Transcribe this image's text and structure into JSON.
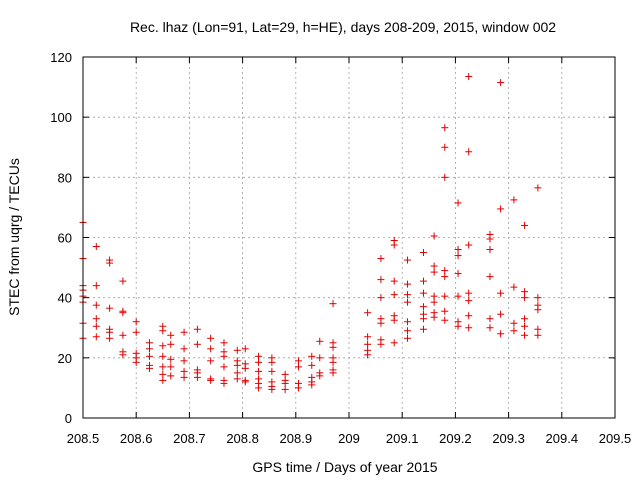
{
  "chart_data": {
    "type": "scatter",
    "title": "Rec. lhaz (Lon=91, Lat=29, h=HE), days 208-209, 2015, window 002",
    "xlabel": "GPS time / Days of year 2015",
    "ylabel": "STEC from uqrg / TECUs",
    "xlim": [
      208.5,
      209.5
    ],
    "ylim": [
      0,
      120
    ],
    "xticks": [
      208.5,
      208.6,
      208.7,
      208.8,
      208.9,
      209,
      209.1,
      209.2,
      209.3,
      209.4,
      209.5
    ],
    "xtick_labels": [
      "208.5",
      "208.6",
      "208.7",
      "208.8",
      "208.9",
      "209",
      "209.1",
      "209.2",
      "209.3",
      "209.4",
      "209.5"
    ],
    "yticks": [
      0,
      20,
      40,
      60,
      80,
      100,
      120
    ],
    "ytick_labels": [
      "0",
      "20",
      "40",
      "60",
      "80",
      "100",
      "120"
    ],
    "grid": true,
    "marker": "plus",
    "color": "#e00000",
    "series": [
      {
        "points": [
          [
            208.5,
            65.0
          ],
          [
            208.5,
            53.0
          ],
          [
            208.5,
            44.0
          ],
          [
            208.5,
            42.5
          ],
          [
            208.5,
            40.5
          ],
          [
            208.5,
            38.5
          ],
          [
            208.5,
            31.5
          ],
          [
            208.5,
            26.5
          ],
          [
            208.525,
            57.0
          ],
          [
            208.525,
            44.0
          ],
          [
            208.525,
            37.5
          ],
          [
            208.525,
            33.0
          ],
          [
            208.525,
            30.5
          ],
          [
            208.525,
            27.0
          ],
          [
            208.55,
            52.5
          ],
          [
            208.55,
            51.5
          ],
          [
            208.55,
            36.5
          ],
          [
            208.55,
            29.5
          ],
          [
            208.55,
            28.5
          ],
          [
            208.55,
            26.5
          ],
          [
            208.575,
            45.5
          ],
          [
            208.575,
            35.5
          ],
          [
            208.575,
            35.0
          ],
          [
            208.575,
            27.5
          ],
          [
            208.575,
            22.0
          ],
          [
            208.575,
            21.0
          ],
          [
            208.6,
            32.0
          ],
          [
            208.6,
            28.5
          ],
          [
            208.6,
            21.5
          ],
          [
            208.6,
            20.0
          ],
          [
            208.6,
            18.5
          ],
          [
            208.625,
            25.0
          ],
          [
            208.625,
            23.0
          ],
          [
            208.625,
            20.5
          ],
          [
            208.625,
            17.5
          ],
          [
            208.625,
            16.5
          ],
          [
            208.65,
            30.5
          ],
          [
            208.65,
            29.0
          ],
          [
            208.65,
            24.0
          ],
          [
            208.65,
            20.5
          ],
          [
            208.65,
            17.0
          ],
          [
            208.65,
            14.5
          ],
          [
            208.65,
            12.5
          ],
          [
            208.665,
            27.5
          ],
          [
            208.665,
            24.5
          ],
          [
            208.665,
            19.5
          ],
          [
            208.665,
            17.0
          ],
          [
            208.665,
            14.0
          ],
          [
            208.69,
            28.5
          ],
          [
            208.69,
            23.0
          ],
          [
            208.69,
            19.0
          ],
          [
            208.69,
            15.5
          ],
          [
            208.69,
            13.5
          ],
          [
            208.715,
            29.5
          ],
          [
            208.715,
            24.5
          ],
          [
            208.715,
            16.0
          ],
          [
            208.715,
            15.0
          ],
          [
            208.715,
            13.5
          ],
          [
            208.74,
            26.5
          ],
          [
            208.74,
            23.0
          ],
          [
            208.74,
            19.0
          ],
          [
            208.74,
            13.0
          ],
          [
            208.74,
            12.5
          ],
          [
            208.765,
            25.0
          ],
          [
            208.765,
            22.0
          ],
          [
            208.765,
            20.5
          ],
          [
            208.765,
            17.0
          ],
          [
            208.765,
            12.5
          ],
          [
            208.765,
            11.5
          ],
          [
            208.79,
            22.5
          ],
          [
            208.79,
            19.0
          ],
          [
            208.79,
            17.5
          ],
          [
            208.79,
            15.0
          ],
          [
            208.79,
            13.0
          ],
          [
            208.805,
            23.0
          ],
          [
            208.805,
            18.0
          ],
          [
            208.805,
            16.5
          ],
          [
            208.805,
            12.5
          ],
          [
            208.805,
            12.0
          ],
          [
            208.83,
            20.5
          ],
          [
            208.83,
            18.5
          ],
          [
            208.83,
            15.5
          ],
          [
            208.83,
            13.0
          ],
          [
            208.83,
            11.5
          ],
          [
            208.83,
            10.0
          ],
          [
            208.855,
            20.0
          ],
          [
            208.855,
            18.5
          ],
          [
            208.855,
            15.5
          ],
          [
            208.855,
            12.0
          ],
          [
            208.855,
            10.5
          ],
          [
            208.855,
            9.5
          ],
          [
            208.88,
            14.5
          ],
          [
            208.88,
            12.5
          ],
          [
            208.88,
            11.5
          ],
          [
            208.88,
            9.5
          ],
          [
            208.905,
            19.0
          ],
          [
            208.905,
            17.0
          ],
          [
            208.905,
            11.5
          ],
          [
            208.905,
            10.0
          ],
          [
            208.93,
            20.5
          ],
          [
            208.93,
            17.5
          ],
          [
            208.93,
            13.5
          ],
          [
            208.93,
            12.0
          ],
          [
            208.93,
            11.0
          ],
          [
            208.945,
            25.5
          ],
          [
            208.945,
            20.0
          ],
          [
            208.945,
            15.0
          ],
          [
            208.945,
            14.0
          ],
          [
            208.97,
            38.0
          ],
          [
            208.97,
            25.0
          ],
          [
            208.97,
            23.5
          ],
          [
            208.97,
            20.0
          ],
          [
            208.97,
            18.5
          ],
          [
            208.97,
            16.0
          ],
          [
            208.97,
            15.0
          ],
          [
            209.035,
            35.0
          ],
          [
            209.035,
            27.0
          ],
          [
            209.035,
            24.5
          ],
          [
            209.035,
            22.5
          ],
          [
            209.035,
            21.0
          ],
          [
            209.06,
            53.0
          ],
          [
            209.06,
            46.0
          ],
          [
            209.06,
            40.0
          ],
          [
            209.06,
            33.0
          ],
          [
            209.06,
            31.5
          ],
          [
            209.06,
            26.0
          ],
          [
            209.06,
            24.5
          ],
          [
            209.085,
            59.0
          ],
          [
            209.085,
            57.5
          ],
          [
            209.085,
            45.5
          ],
          [
            209.085,
            41.0
          ],
          [
            209.085,
            34.0
          ],
          [
            209.085,
            32.5
          ],
          [
            209.085,
            25.0
          ],
          [
            209.11,
            52.5
          ],
          [
            209.11,
            44.5
          ],
          [
            209.11,
            41.0
          ],
          [
            209.11,
            38.5
          ],
          [
            209.11,
            32.0
          ],
          [
            209.11,
            29.0
          ],
          [
            209.11,
            26.5
          ],
          [
            209.14,
            55.0
          ],
          [
            209.14,
            45.5
          ],
          [
            209.14,
            41.5
          ],
          [
            209.14,
            37.0
          ],
          [
            209.14,
            34.5
          ],
          [
            209.14,
            33.0
          ],
          [
            209.14,
            29.5
          ],
          [
            209.16,
            60.5
          ],
          [
            209.16,
            50.5
          ],
          [
            209.16,
            48.5
          ],
          [
            209.16,
            40.5
          ],
          [
            209.16,
            38.5
          ],
          [
            209.16,
            35.0
          ],
          [
            209.16,
            33.5
          ],
          [
            209.18,
            96.5
          ],
          [
            209.18,
            90.0
          ],
          [
            209.18,
            80.0
          ],
          [
            209.18,
            49.0
          ],
          [
            209.18,
            47.0
          ],
          [
            209.18,
            40.5
          ],
          [
            209.18,
            35.5
          ],
          [
            209.18,
            32.5
          ],
          [
            209.205,
            71.5
          ],
          [
            209.205,
            56.0
          ],
          [
            209.205,
            54.0
          ],
          [
            209.205,
            48.0
          ],
          [
            209.205,
            40.5
          ],
          [
            209.205,
            32.0
          ],
          [
            209.205,
            30.5
          ],
          [
            209.225,
            113.5
          ],
          [
            209.225,
            88.5
          ],
          [
            209.225,
            57.5
          ],
          [
            209.225,
            41.5
          ],
          [
            209.225,
            39.0
          ],
          [
            209.225,
            34.0
          ],
          [
            209.225,
            30.0
          ],
          [
            209.265,
            61.0
          ],
          [
            209.265,
            59.5
          ],
          [
            209.265,
            56.0
          ],
          [
            209.265,
            47.0
          ],
          [
            209.265,
            33.0
          ],
          [
            209.265,
            30.0
          ],
          [
            209.285,
            111.5
          ],
          [
            209.285,
            69.5
          ],
          [
            209.285,
            41.5
          ],
          [
            209.285,
            34.5
          ],
          [
            209.285,
            28.0
          ],
          [
            209.31,
            72.5
          ],
          [
            209.31,
            43.5
          ],
          [
            209.31,
            31.5
          ],
          [
            209.31,
            29.0
          ],
          [
            209.33,
            64.0
          ],
          [
            209.33,
            42.0
          ],
          [
            209.33,
            40.0
          ],
          [
            209.33,
            33.0
          ],
          [
            209.33,
            30.5
          ],
          [
            209.33,
            27.5
          ],
          [
            209.355,
            76.5
          ],
          [
            209.355,
            40.0
          ],
          [
            209.355,
            37.5
          ],
          [
            209.355,
            36.0
          ],
          [
            209.355,
            29.5
          ],
          [
            209.355,
            27.5
          ]
        ]
      }
    ]
  }
}
